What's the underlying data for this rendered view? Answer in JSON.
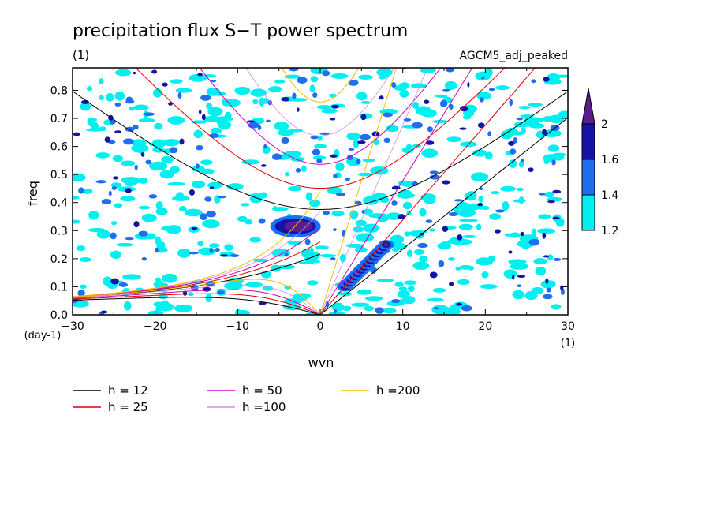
{
  "chart_data": {
    "type": "heatmap",
    "title": "precipitation flux S−T power spectrum",
    "units_label": "(1)",
    "model_label": "AGCM5_adj_peaked",
    "xlabel": "wvn",
    "ylabel": "freq",
    "x_unit": "(1)",
    "y_unit": "(day-1)",
    "xlim": [
      -30,
      30
    ],
    "ylim": [
      0,
      0.88
    ],
    "x_ticks": [
      {
        "value": -30,
        "label": "−30"
      },
      {
        "value": -20,
        "label": "−20"
      },
      {
        "value": -10,
        "label": "−10"
      },
      {
        "value": 0,
        "label": "0"
      },
      {
        "value": 10,
        "label": "10"
      },
      {
        "value": 20,
        "label": "20"
      },
      {
        "value": 30,
        "label": "30"
      }
    ],
    "y_ticks": [
      {
        "value": 0.0,
        "label": "0.0"
      },
      {
        "value": 0.1,
        "label": "0.1"
      },
      {
        "value": 0.2,
        "label": "0.2"
      },
      {
        "value": 0.3,
        "label": "0.3"
      },
      {
        "value": 0.4,
        "label": "0.4"
      },
      {
        "value": 0.5,
        "label": "0.5"
      },
      {
        "value": 0.6,
        "label": "0.6"
      },
      {
        "value": 0.7,
        "label": "0.7"
      },
      {
        "value": 0.8,
        "label": "0.8"
      }
    ],
    "colorbar": {
      "levels": [
        {
          "value": 1.2,
          "label": "1.2"
        },
        {
          "value": 1.4,
          "label": "1.4"
        },
        {
          "value": 1.6,
          "label": "1.6"
        },
        {
          "value": 2.0,
          "label": "2"
        }
      ],
      "colors": [
        "#00f0f0",
        "#1e6ef0",
        "#1414a8",
        "#5a1e8c"
      ]
    },
    "series": [
      {
        "name": "h = 12",
        "h": 12,
        "color": "#000000"
      },
      {
        "name": "h = 25",
        "h": 25,
        "color": "#e00000"
      },
      {
        "name": "h = 50",
        "h": 50,
        "color": "#d000c0"
      },
      {
        "name": "h =100",
        "h": 100,
        "color": "#d88ae0"
      },
      {
        "name": "h =200",
        "h": 200,
        "color": "#f0c000"
      }
    ],
    "features": {
      "kelvin_region_peak": {
        "wvn_range": [
          3,
          8
        ],
        "freq_range": [
          0.1,
          0.25
        ],
        "level": 2.0
      },
      "mjo_like_peak": {
        "wvn_range": [
          -6,
          0
        ],
        "freq_range": [
          0.28,
          0.35
        ],
        "level": 2.0
      }
    }
  }
}
